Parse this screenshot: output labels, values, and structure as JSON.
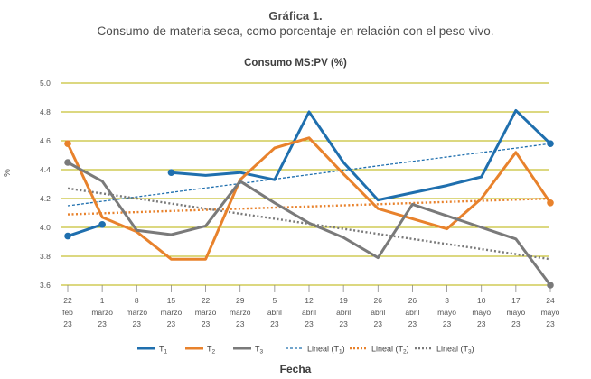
{
  "figure_title": "Gráfica 1.",
  "figure_subtitle": "Consumo de materia seca, como porcentaje en relación con el peso vivo.",
  "colors": {
    "grid": "#b8b000",
    "t1": "#1f6fae",
    "t2": "#e8822c",
    "t3": "#7a7a7a"
  },
  "chart_data": {
    "type": "line",
    "title": "Consumo MS:PV (%)",
    "xlabel": "Fecha",
    "ylabel": "%",
    "ylim": [
      3.6,
      5.0
    ],
    "yticks": [
      "5.0",
      "4.8",
      "4.6",
      "4.4",
      "4.2",
      "4.0",
      "3.8",
      "3.6"
    ],
    "grid": true,
    "legend_position": "bottom",
    "categories": [
      [
        "22",
        "feb",
        "23"
      ],
      [
        "1",
        "marzo",
        "23"
      ],
      [
        "8",
        "marzo",
        "23"
      ],
      [
        "15",
        "marzo",
        "23"
      ],
      [
        "22",
        "marzo",
        "23"
      ],
      [
        "29",
        "marzo",
        "23"
      ],
      [
        "5",
        "abril",
        "23"
      ],
      [
        "12",
        "abril",
        "23"
      ],
      [
        "19",
        "abril",
        "23"
      ],
      [
        "26",
        "abril",
        "23"
      ],
      [
        "26",
        "abril",
        "23"
      ],
      [
        "3",
        "mayo",
        "23"
      ],
      [
        "10",
        "mayo",
        "23"
      ],
      [
        "17",
        "mayo",
        "23"
      ],
      [
        "24",
        "mayo",
        "23"
      ]
    ],
    "series": [
      {
        "name": "T1",
        "color": "#1f6fae",
        "values": [
          3.94,
          4.02,
          null,
          4.38,
          4.36,
          4.38,
          4.33,
          4.8,
          4.45,
          4.19,
          4.24,
          4.29,
          4.35,
          4.81,
          4.58
        ]
      },
      {
        "name": "T2",
        "color": "#e8822c",
        "values": [
          4.58,
          4.07,
          3.97,
          3.78,
          3.78,
          4.33,
          4.55,
          4.62,
          4.37,
          4.13,
          4.06,
          3.99,
          4.2,
          4.52,
          4.17
        ]
      },
      {
        "name": "T3",
        "color": "#7a7a7a",
        "values": [
          4.45,
          4.32,
          3.98,
          3.95,
          4.01,
          4.32,
          4.17,
          4.03,
          3.93,
          3.79,
          4.16,
          4.08,
          4.0,
          3.92,
          3.6
        ]
      }
    ],
    "trendlines": [
      {
        "name": "Lineal (T1)",
        "series": "T1",
        "color": "#1f6fae",
        "dash": "thin",
        "start": 4.15,
        "end": 4.58
      },
      {
        "name": "Lineal (T2)",
        "series": "T2",
        "color": "#e8822c",
        "dash": "dotted",
        "start": 4.09,
        "end": 4.2
      },
      {
        "name": "Lineal (T3)",
        "series": "T3",
        "color": "#7a7a7a",
        "dash": "dotted",
        "start": 4.27,
        "end": 3.78
      }
    ],
    "legend": [
      {
        "label": "T",
        "sub": "1",
        "style": "solid",
        "color": "#1f6fae"
      },
      {
        "label": "T",
        "sub": "2",
        "style": "solid",
        "color": "#e8822c"
      },
      {
        "label": "T",
        "sub": "3",
        "style": "solid",
        "color": "#7a7a7a"
      },
      {
        "label": "Lineal (T",
        "sub": "1",
        "suffix": ")",
        "style": "dashed",
        "color": "#1f6fae"
      },
      {
        "label": "Lineal (T",
        "sub": "2",
        "suffix": ")",
        "style": "dotted",
        "color": "#e8822c"
      },
      {
        "label": "Lineal (T",
        "sub": "3",
        "suffix": ")",
        "style": "dotted",
        "color": "#7a7a7a"
      }
    ]
  }
}
